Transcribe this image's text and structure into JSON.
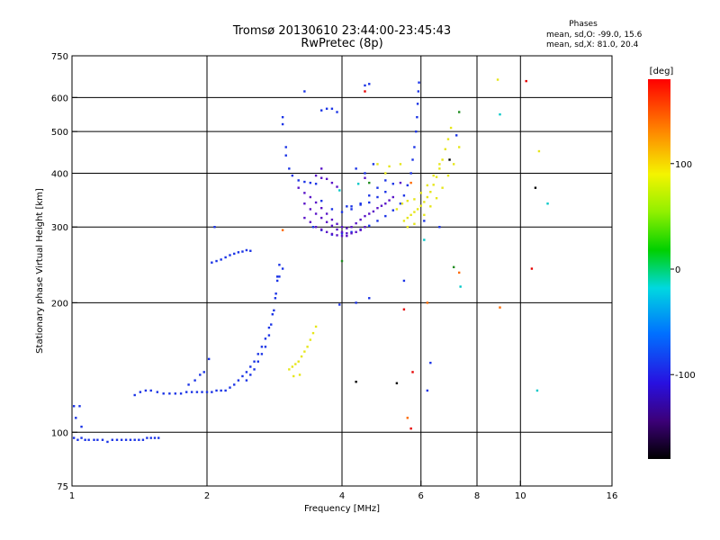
{
  "chart_data": {
    "type": "scatter",
    "title": "Tromsø 20130610 23:44:00-23:45:43",
    "subtitle": "RwPretec (8p)",
    "info": {
      "heading": "Phases",
      "line1": "mean, sd,O: -99.0, 15.6",
      "line2": "mean, sd,X:  81.0, 20.4"
    },
    "xlabel": "Frequency [MHz]",
    "ylabel": "Stationary phase Virtual Height [km]",
    "x_scale": "log",
    "y_scale": "log",
    "xlim": [
      1,
      16
    ],
    "ylim": [
      75,
      750
    ],
    "x_ticks": [
      1,
      2,
      4,
      6,
      8,
      10,
      16
    ],
    "x_ticklabels": [
      "1",
      "2",
      "4",
      "6",
      "8",
      "10",
      "16"
    ],
    "x_gridlines": [
      2,
      4,
      6,
      8,
      10
    ],
    "y_ticks": [
      75,
      100,
      200,
      300,
      400,
      500,
      600,
      750
    ],
    "y_ticklabels": [
      "75",
      "100",
      "200",
      "300",
      "400",
      "500",
      "600",
      "750"
    ],
    "y_gridlines": [
      100,
      200,
      300,
      400,
      500,
      600
    ],
    "grid": true,
    "colorbar": {
      "label": "[deg]",
      "range": [
        -180,
        180
      ],
      "ticks": [
        100,
        0,
        -100
      ],
      "ticklabels": [
        "100",
        "0",
        "-100"
      ]
    },
    "series": [
      {
        "color": "#1a33e6",
        "phase": -100,
        "points": [
          [
            1.01,
            97
          ],
          [
            1.03,
            96
          ],
          [
            1.05,
            97
          ],
          [
            1.07,
            96
          ],
          [
            1.09,
            96
          ],
          [
            1.12,
            96
          ],
          [
            1.14,
            96
          ],
          [
            1.17,
            96
          ],
          [
            1.2,
            95
          ],
          [
            1.23,
            96
          ],
          [
            1.26,
            96
          ],
          [
            1.29,
            96
          ],
          [
            1.32,
            96
          ],
          [
            1.35,
            96
          ],
          [
            1.38,
            96
          ],
          [
            1.41,
            96
          ],
          [
            1.44,
            96
          ],
          [
            1.47,
            97
          ],
          [
            1.5,
            97
          ],
          [
            1.53,
            97
          ],
          [
            1.56,
            97
          ],
          [
            1.01,
            115
          ],
          [
            1.04,
            115
          ],
          [
            1.02,
            108
          ],
          [
            1.05,
            103
          ],
          [
            1.38,
            122
          ],
          [
            1.42,
            124
          ],
          [
            1.46,
            125
          ],
          [
            1.5,
            125
          ],
          [
            1.55,
            124
          ],
          [
            1.6,
            123
          ],
          [
            1.65,
            123
          ],
          [
            1.7,
            123
          ],
          [
            1.75,
            123
          ],
          [
            1.8,
            124
          ],
          [
            1.85,
            124
          ],
          [
            1.9,
            124
          ],
          [
            1.95,
            124
          ],
          [
            2.0,
            124
          ],
          [
            2.05,
            124
          ],
          [
            2.1,
            125
          ],
          [
            2.15,
            125
          ],
          [
            2.2,
            125
          ],
          [
            2.25,
            127
          ],
          [
            2.3,
            129
          ],
          [
            2.35,
            132
          ],
          [
            2.4,
            135
          ],
          [
            2.45,
            138
          ],
          [
            2.5,
            142
          ],
          [
            2.55,
            146
          ],
          [
            2.6,
            152
          ],
          [
            2.65,
            158
          ],
          [
            2.7,
            165
          ],
          [
            2.75,
            175
          ],
          [
            2.8,
            188
          ],
          [
            2.84,
            205
          ],
          [
            2.87,
            225
          ],
          [
            2.9,
            245
          ],
          [
            1.82,
            129
          ],
          [
            1.88,
            132
          ],
          [
            1.93,
            136
          ],
          [
            1.97,
            138
          ],
          [
            2.02,
            148
          ],
          [
            2.45,
            132
          ],
          [
            2.5,
            136
          ],
          [
            2.55,
            140
          ],
          [
            2.6,
            146
          ],
          [
            2.65,
            152
          ],
          [
            2.7,
            158
          ],
          [
            2.75,
            168
          ],
          [
            2.78,
            178
          ],
          [
            2.82,
            192
          ],
          [
            2.85,
            210
          ],
          [
            2.87,
            230
          ],
          [
            2.05,
            248
          ],
          [
            2.1,
            250
          ],
          [
            2.15,
            252
          ],
          [
            2.2,
            255
          ],
          [
            2.25,
            258
          ],
          [
            2.3,
            260
          ],
          [
            2.35,
            262
          ],
          [
            2.4,
            263
          ],
          [
            2.45,
            265
          ],
          [
            2.5,
            264
          ],
          [
            2.08,
            300
          ],
          [
            2.95,
            520
          ],
          [
            2.95,
            540
          ],
          [
            3.0,
            460
          ],
          [
            3.0,
            440
          ],
          [
            3.05,
            410
          ],
          [
            3.1,
            395
          ],
          [
            3.2,
            385
          ],
          [
            3.3,
            382
          ],
          [
            3.4,
            380
          ],
          [
            3.5,
            378
          ],
          [
            3.45,
            300
          ],
          [
            3.6,
            295
          ],
          [
            3.8,
            288
          ],
          [
            4.0,
            290
          ],
          [
            4.2,
            292
          ],
          [
            4.4,
            296
          ],
          [
            4.6,
            302
          ],
          [
            4.8,
            310
          ],
          [
            5.0,
            318
          ],
          [
            5.2,
            328
          ],
          [
            5.4,
            340
          ],
          [
            5.5,
            355
          ],
          [
            5.6,
            375
          ],
          [
            5.7,
            400
          ],
          [
            5.75,
            430
          ],
          [
            5.8,
            460
          ],
          [
            5.85,
            500
          ],
          [
            5.88,
            540
          ],
          [
            5.9,
            580
          ],
          [
            5.92,
            620
          ],
          [
            5.94,
            650
          ],
          [
            4.1,
            335
          ],
          [
            4.2,
            335
          ],
          [
            4.4,
            338
          ],
          [
            4.6,
            342
          ],
          [
            4.8,
            352
          ],
          [
            5.0,
            362
          ],
          [
            5.2,
            378
          ],
          [
            3.6,
            345
          ],
          [
            3.8,
            330
          ],
          [
            4.0,
            325
          ],
          [
            4.2,
            330
          ],
          [
            4.4,
            340
          ],
          [
            4.6,
            355
          ],
          [
            4.8,
            370
          ],
          [
            5.0,
            385
          ],
          [
            3.3,
            620
          ],
          [
            4.5,
            640
          ],
          [
            4.6,
            645
          ],
          [
            4.3,
            410
          ],
          [
            4.5,
            400
          ],
          [
            4.7,
            420
          ],
          [
            3.6,
            560
          ],
          [
            3.7,
            565
          ],
          [
            3.8,
            565
          ],
          [
            3.9,
            555
          ],
          [
            2.9,
            230
          ],
          [
            2.95,
            240
          ],
          [
            3.95,
            198
          ],
          [
            4.3,
            200
          ],
          [
            4.6,
            205
          ],
          [
            5.5,
            225
          ],
          [
            6.2,
            125
          ],
          [
            6.3,
            145
          ],
          [
            6.6,
            300
          ],
          [
            7.2,
            490
          ],
          [
            6.1,
            310
          ]
        ]
      },
      {
        "color": "#5a14c8",
        "phase": -130,
        "points": [
          [
            3.2,
            370
          ],
          [
            3.3,
            360
          ],
          [
            3.4,
            352
          ],
          [
            3.5,
            342
          ],
          [
            3.6,
            332
          ],
          [
            3.7,
            322
          ],
          [
            3.8,
            312
          ],
          [
            3.9,
            305
          ],
          [
            4.0,
            300
          ],
          [
            4.1,
            298
          ],
          [
            4.2,
            300
          ],
          [
            4.3,
            306
          ],
          [
            4.4,
            312
          ],
          [
            4.5,
            318
          ],
          [
            4.6,
            322
          ],
          [
            4.7,
            326
          ],
          [
            4.8,
            332
          ],
          [
            4.9,
            336
          ],
          [
            5.0,
            340
          ],
          [
            5.1,
            346
          ],
          [
            5.2,
            352
          ],
          [
            3.3,
            340
          ],
          [
            3.4,
            330
          ],
          [
            3.5,
            322
          ],
          [
            3.6,
            315
          ],
          [
            3.7,
            308
          ],
          [
            3.8,
            302
          ],
          [
            3.9,
            296
          ],
          [
            4.0,
            292
          ],
          [
            4.1,
            290
          ],
          [
            4.2,
            290
          ],
          [
            4.3,
            292
          ],
          [
            4.4,
            295
          ],
          [
            4.5,
            300
          ],
          [
            3.3,
            315
          ],
          [
            3.4,
            308
          ],
          [
            3.5,
            300
          ],
          [
            3.6,
            296
          ],
          [
            3.7,
            292
          ],
          [
            3.8,
            289
          ],
          [
            3.9,
            287
          ],
          [
            4.0,
            286
          ],
          [
            4.1,
            286
          ],
          [
            3.5,
            395
          ],
          [
            3.6,
            390
          ],
          [
            3.7,
            388
          ],
          [
            3.8,
            380
          ],
          [
            3.9,
            372
          ],
          [
            3.6,
            410
          ],
          [
            4.5,
            390
          ],
          [
            5.4,
            380
          ]
        ]
      },
      {
        "color": "#e6e619",
        "phase": 100,
        "points": [
          [
            3.05,
            140
          ],
          [
            3.1,
            142
          ],
          [
            3.15,
            144
          ],
          [
            3.2,
            146
          ],
          [
            3.25,
            150
          ],
          [
            3.3,
            154
          ],
          [
            3.35,
            158
          ],
          [
            3.4,
            164
          ],
          [
            3.45,
            170
          ],
          [
            3.5,
            176
          ],
          [
            3.12,
            135
          ],
          [
            3.22,
            136
          ],
          [
            5.5,
            310
          ],
          [
            5.6,
            315
          ],
          [
            5.7,
            320
          ],
          [
            5.8,
            325
          ],
          [
            5.9,
            330
          ],
          [
            6.0,
            336
          ],
          [
            6.1,
            343
          ],
          [
            6.2,
            352
          ],
          [
            6.3,
            362
          ],
          [
            6.4,
            376
          ],
          [
            6.5,
            392
          ],
          [
            6.6,
            410
          ],
          [
            6.7,
            430
          ],
          [
            6.8,
            455
          ],
          [
            6.9,
            480
          ],
          [
            7.0,
            510
          ],
          [
            5.3,
            330
          ],
          [
            5.45,
            340
          ],
          [
            5.6,
            345
          ],
          [
            5.8,
            348
          ],
          [
            6.0,
            360
          ],
          [
            6.2,
            375
          ],
          [
            6.4,
            395
          ],
          [
            6.6,
            420
          ],
          [
            5.6,
            300
          ],
          [
            5.8,
            305
          ],
          [
            6.1,
            320
          ],
          [
            6.3,
            335
          ],
          [
            6.5,
            350
          ],
          [
            6.7,
            370
          ],
          [
            6.9,
            395
          ],
          [
            7.1,
            420
          ],
          [
            4.8,
            420
          ],
          [
            5.0,
            400
          ],
          [
            5.1,
            415
          ],
          [
            5.4,
            420
          ],
          [
            7.3,
            460
          ],
          [
            8.9,
            660
          ],
          [
            11.0,
            450
          ]
        ]
      },
      {
        "color": "#00c8c8",
        "phase": -30,
        "points": [
          [
            3.95,
            365
          ],
          [
            4.35,
            378
          ],
          [
            6.1,
            280
          ],
          [
            7.35,
            218
          ],
          [
            9.0,
            548
          ],
          [
            10.9,
            125
          ],
          [
            11.5,
            340
          ]
        ]
      },
      {
        "color": "#1e8c1e",
        "phase": 20,
        "points": [
          [
            4.0,
            250
          ],
          [
            4.6,
            380
          ],
          [
            7.3,
            555
          ],
          [
            7.1,
            242
          ]
        ]
      },
      {
        "color": "#ff6a00",
        "phase": 140,
        "points": [
          [
            2.95,
            295
          ],
          [
            5.6,
            108
          ],
          [
            6.2,
            200
          ],
          [
            7.3,
            235
          ],
          [
            5.7,
            380
          ],
          [
            9.0,
            195
          ]
        ]
      },
      {
        "color": "#e60000",
        "phase": 170,
        "points": [
          [
            5.5,
            193
          ],
          [
            5.7,
            102
          ],
          [
            5.75,
            138
          ],
          [
            10.3,
            655
          ],
          [
            10.6,
            240
          ],
          [
            4.5,
            620
          ]
        ]
      },
      {
        "color": "#000000",
        "phase": -170,
        "points": [
          [
            4.3,
            131
          ],
          [
            5.3,
            130
          ],
          [
            6.95,
            430
          ],
          [
            10.8,
            370
          ]
        ]
      }
    ]
  }
}
